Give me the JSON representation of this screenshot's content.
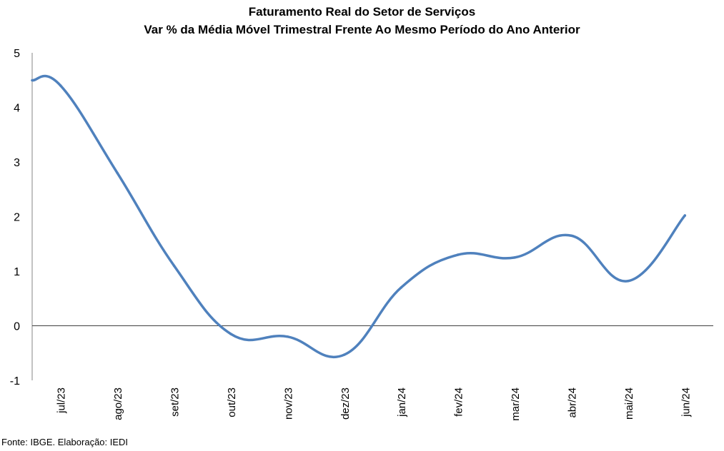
{
  "chart_data": {
    "type": "line",
    "title": "Faturamento  Real do Setor de Serviços",
    "subtitle": "Var % da Média Móvel Trimestral Frente Ao Mesmo Período do Ano Anterior",
    "xlabel": "",
    "ylabel": "",
    "ylim": [
      -1,
      5
    ],
    "yticks": [
      "5",
      "4",
      "3",
      "2",
      "1",
      "0",
      "-1"
    ],
    "grid": false,
    "legend": "none",
    "categories": [
      "jul/23",
      "ago/23",
      "set/23",
      "out/23",
      "nov/23",
      "dez/23",
      "jan/24",
      "fev/24",
      "mar/24",
      "abr/24",
      "mai/24",
      "jun/24"
    ],
    "series": [
      {
        "color": "#4f81bd",
        "values": [
          4.4,
          2.8,
          1.1,
          -0.15,
          -0.2,
          -0.53,
          0.7,
          1.3,
          1.25,
          1.65,
          0.82,
          2.02
        ]
      }
    ]
  },
  "footer": {
    "source": "Fonte: IBGE. Elaboração: IEDI"
  }
}
